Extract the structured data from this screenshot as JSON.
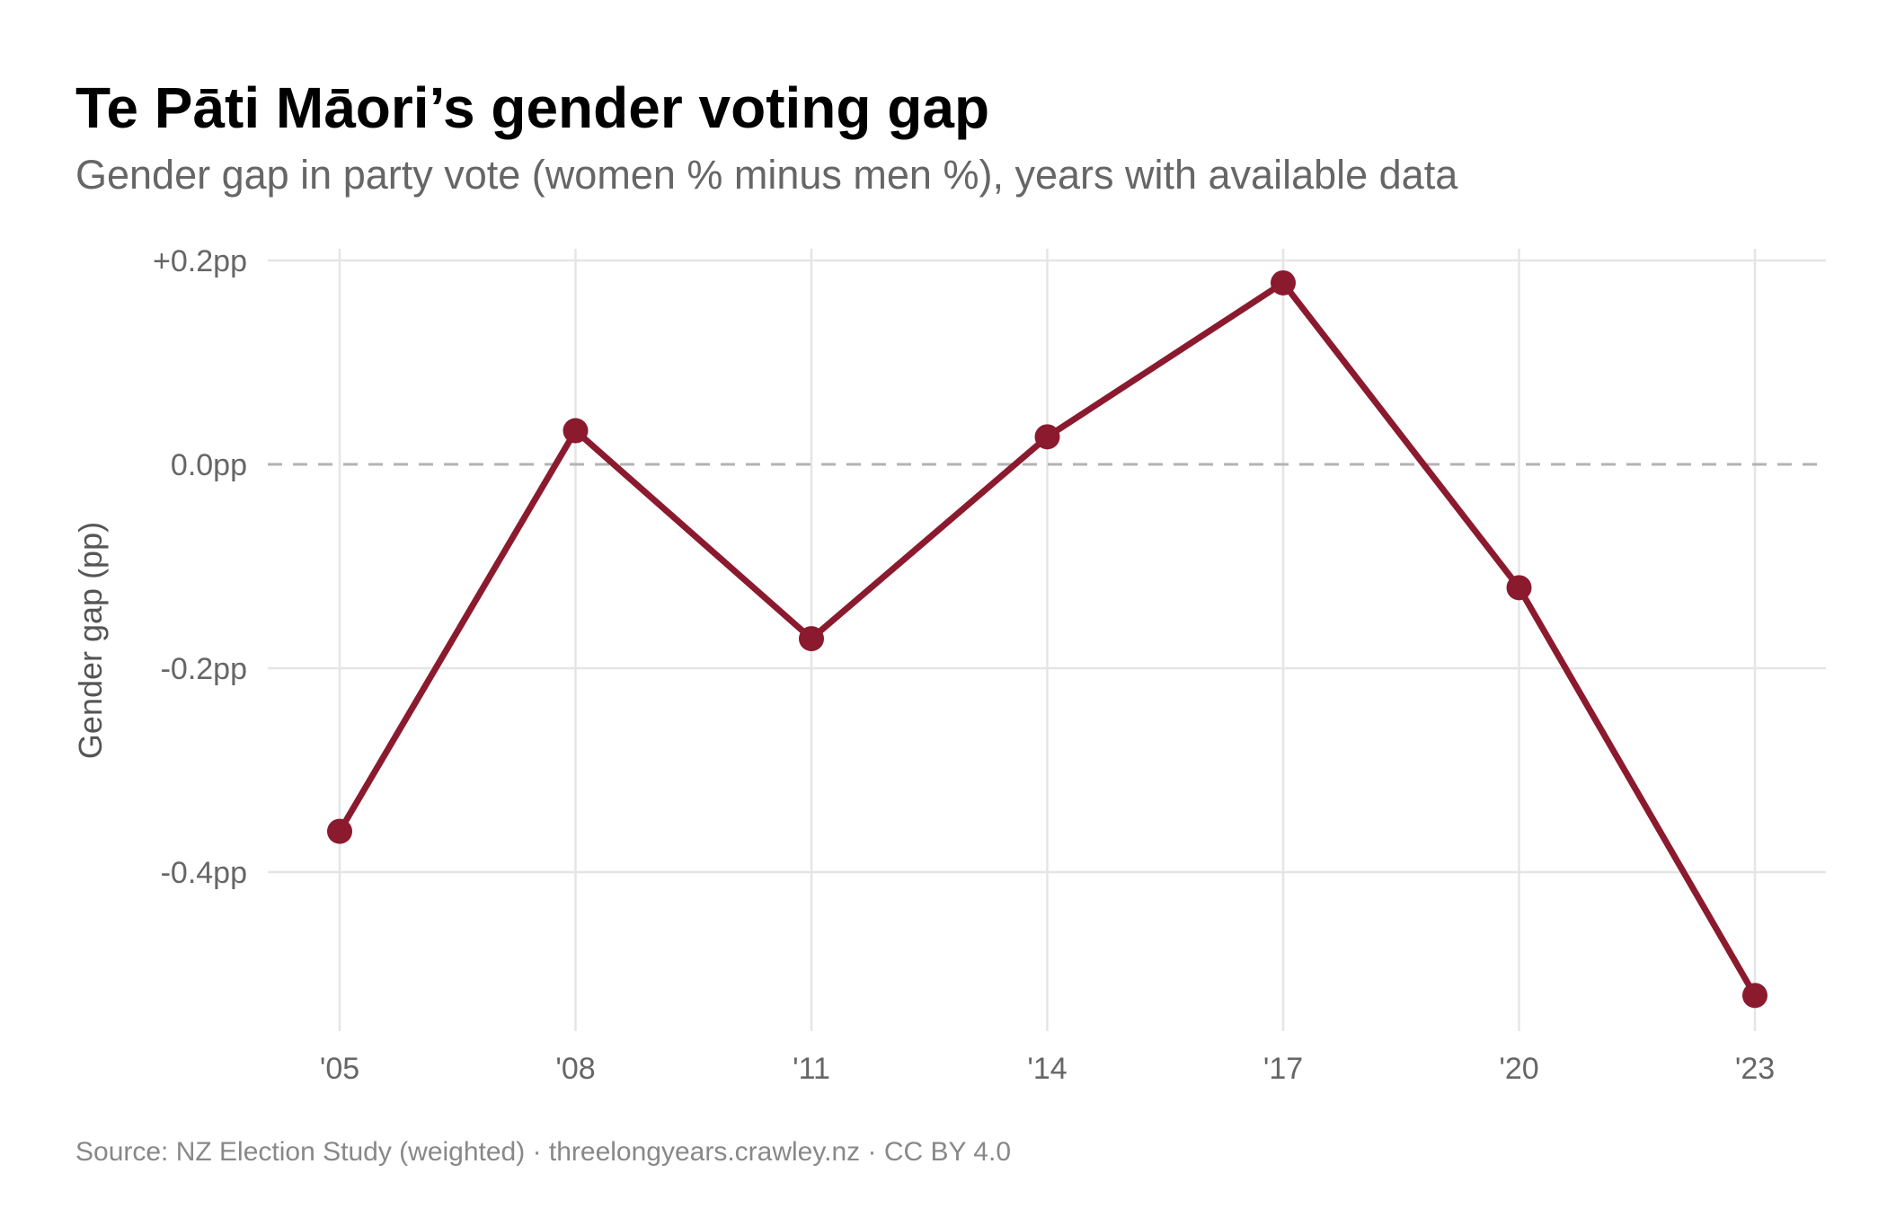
{
  "title": "Te Pāti Māori’s gender voting gap",
  "subtitle": "Gender gap in party vote (women % minus men %), years with available data",
  "caption": "Source: NZ Election Study (weighted) · threelongyears.crawley.nz · CC BY 4.0",
  "chart_data": {
    "type": "line",
    "title": "Te Pāti Māori’s gender voting gap",
    "xlabel": "",
    "ylabel": "Gender gap (pp)",
    "categories": [
      "'05",
      "'08",
      "'11",
      "'14",
      "'17",
      "'20",
      "'23"
    ],
    "x": [
      2005,
      2008,
      2011,
      2014,
      2017,
      2020,
      2023
    ],
    "values": [
      -0.36,
      0.033,
      -0.171,
      0.027,
      0.178,
      -0.121,
      -0.521
    ],
    "yticks": [
      0.2,
      0.0,
      -0.2,
      -0.4
    ],
    "ytick_labels": [
      "+0.2pp",
      "0.0pp",
      "-0.2pp",
      "-0.4pp"
    ],
    "ylim": [
      -0.55,
      0.21
    ],
    "reference_line": 0,
    "grid": true,
    "line_color": "#8B1A2E",
    "grid_color": "#E5E5E5",
    "reference_color": "#B3B3B3"
  }
}
